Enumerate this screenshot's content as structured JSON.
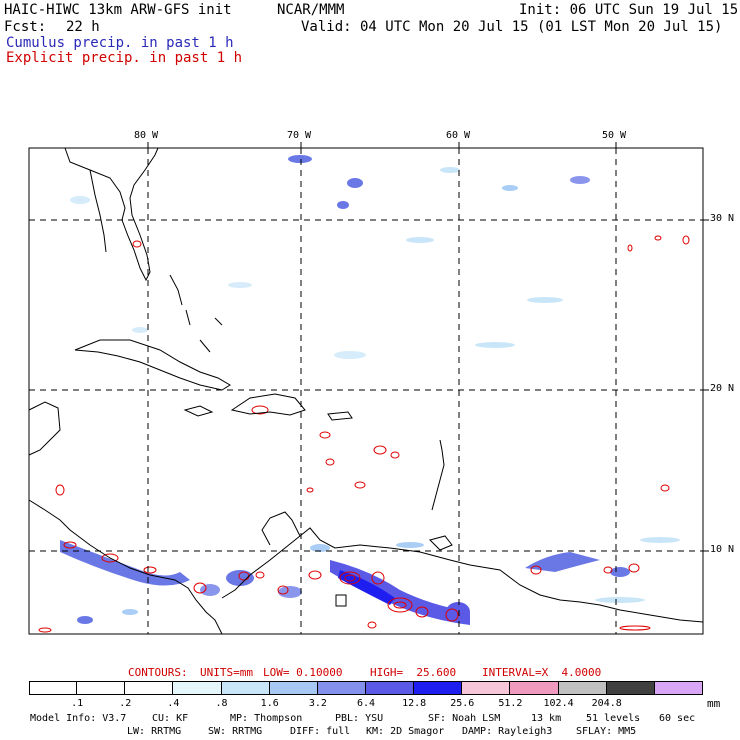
{
  "header": {
    "model": "HAIC-HIWC 13km ARW-GFS init",
    "institution": "NCAR/MMM",
    "init": "Init: 06 UTC Sun 19 Jul 15",
    "fcst_label": "Fcst:",
    "fcst_value": "22 h",
    "valid": "Valid: 04 UTC Mon 20 Jul 15 (01 LST Mon 20 Jul 15)",
    "legend_cumulus": "Cumulus precip. in past 1 h",
    "legend_explicit": "Explicit precip. in past 1 h",
    "legend_cumulus_color": "#2a2ab8",
    "legend_explicit_color": "#d00000"
  },
  "map": {
    "lon_labels": [
      "80 W",
      "70 W",
      "60 W",
      "50 W"
    ],
    "lat_labels": [
      "30 N",
      "20 N",
      "10 N"
    ],
    "grid": "dashed"
  },
  "contours": {
    "units_label": "CONTOURS:",
    "units": "UNITS=mm",
    "low": "LOW= 0.10000",
    "high": "HIGH=  25.600",
    "interval": "INTERVAL=X  4.0000"
  },
  "colorbar": {
    "unit": "mm",
    "labels": [
      ".1",
      ".2",
      ".4",
      ".8",
      "1.6",
      "3.2",
      "6.4",
      "12.8",
      "25.6",
      "51.2",
      "102.4",
      "204.8"
    ],
    "colors": [
      "#ffffff",
      "#ffffff",
      "#ffffff",
      "#e6f7fb",
      "#c9e6f8",
      "#a6c8f2",
      "#8390ec",
      "#5a5ae6",
      "#1e1ef0",
      "#f6c6d8",
      "#f09ac0",
      "#c0c0c0",
      "#404040",
      "#d8a6f4"
    ]
  },
  "model_info": {
    "line1": [
      "Model Info: V3.7",
      "CU: KF",
      "MP: Thompson",
      "PBL: YSU",
      "SF: Noah LSM",
      "13 km",
      "51 levels",
      "60 sec"
    ],
    "line2": [
      "LW: RRTMG",
      "SW: RRTMG",
      "DIFF: full",
      "KM: 2D Smagor",
      "DAMP: Rayleigh3",
      "SFLAY: MM5"
    ]
  }
}
